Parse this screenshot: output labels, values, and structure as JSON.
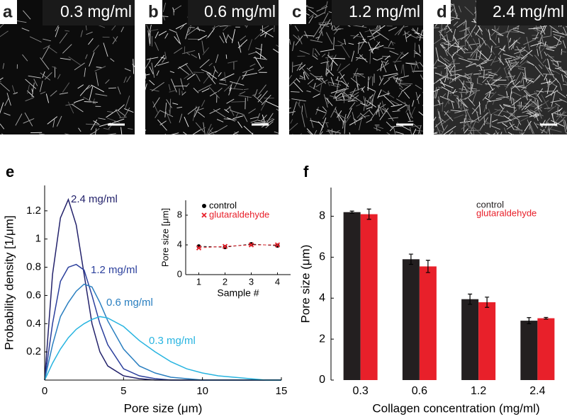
{
  "panels": [
    {
      "label": "a",
      "concentration": "0.3 mg/ml"
    },
    {
      "label": "b",
      "concentration": "0.6 mg/ml"
    },
    {
      "label": "c",
      "concentration": "1.2 mg/ml"
    },
    {
      "label": "d",
      "concentration": "2.4 mg/ml"
    }
  ],
  "chart_data": [
    {
      "type": "line",
      "panel_label": "e",
      "x_label": "Pore size (μm)",
      "y_label": "Probability density [1/μm]",
      "x": [
        0,
        0.5,
        1,
        1.5,
        2,
        2.5,
        3,
        3.5,
        4,
        5,
        6,
        7,
        8,
        9,
        10,
        11,
        12,
        13,
        14,
        15
      ],
      "series": [
        {
          "name": "2.4 mg/ml",
          "color": "#23226b",
          "values": [
            0,
            0.75,
            1.15,
            1.28,
            1.1,
            0.75,
            0.4,
            0.2,
            0.1,
            0.03,
            0.01,
            0,
            0,
            0,
            0,
            0,
            0,
            0,
            0,
            0
          ]
        },
        {
          "name": "1.2 mg/ml",
          "color": "#2b3f9c",
          "values": [
            0,
            0.4,
            0.7,
            0.8,
            0.82,
            0.78,
            0.6,
            0.4,
            0.25,
            0.08,
            0.03,
            0.01,
            0,
            0,
            0,
            0,
            0,
            0,
            0,
            0
          ]
        },
        {
          "name": "0.6 mg/ml",
          "color": "#2a7fc0",
          "values": [
            0,
            0.25,
            0.45,
            0.55,
            0.63,
            0.68,
            0.66,
            0.55,
            0.42,
            0.22,
            0.1,
            0.05,
            0.02,
            0.01,
            0,
            0,
            0,
            0,
            0,
            0
          ]
        },
        {
          "name": "0.3 mg/ml",
          "color": "#27b4e0",
          "values": [
            0,
            0.12,
            0.22,
            0.3,
            0.36,
            0.4,
            0.43,
            0.45,
            0.44,
            0.38,
            0.28,
            0.2,
            0.13,
            0.08,
            0.05,
            0.03,
            0.02,
            0.01,
            0,
            0
          ]
        }
      ],
      "xlim": [
        0,
        15
      ],
      "xticks": [
        0,
        5,
        10,
        15
      ],
      "ylim": [
        0,
        1.38
      ],
      "yticks": [
        0.2,
        0.4,
        0.6,
        0.8,
        1,
        1.2
      ]
    },
    {
      "type": "scatter",
      "x_label": "Sample #",
      "y_label": "Pore size [μm]",
      "x": [
        1,
        2,
        3,
        4
      ],
      "series": [
        {
          "name": "control",
          "color": "#000000",
          "marker": "circle",
          "values": [
            3.8,
            3.7,
            4.1,
            3.9
          ]
        },
        {
          "name": "glutaraldehyde",
          "color": "#e8202a",
          "marker": "cross",
          "values": [
            3.6,
            3.8,
            4.0,
            4.0
          ]
        }
      ],
      "xlim": [
        0.5,
        4.5
      ],
      "xticks": [
        1,
        2,
        3,
        4
      ],
      "ylim": [
        0,
        10
      ],
      "yticks": [
        0,
        4,
        8
      ]
    },
    {
      "type": "bar",
      "panel_label": "f",
      "x_label": "Collagen concentration (mg/ml)",
      "y_label": "Pore size (μm)",
      "categories": [
        "0.3",
        "0.6",
        "1.2",
        "2.4"
      ],
      "series": [
        {
          "name": "control",
          "color": "#231f20",
          "values": [
            8.2,
            5.9,
            3.95,
            2.9
          ],
          "errors": [
            0.05,
            0.25,
            0.25,
            0.15
          ]
        },
        {
          "name": "glutaraldehyde",
          "color": "#e8202a",
          "values": [
            8.1,
            5.55,
            3.8,
            3.02
          ],
          "errors": [
            0.25,
            0.3,
            0.25,
            0.04
          ]
        }
      ],
      "ylim": [
        0,
        9.4
      ],
      "yticks": [
        0,
        2,
        4,
        6,
        8
      ]
    }
  ]
}
